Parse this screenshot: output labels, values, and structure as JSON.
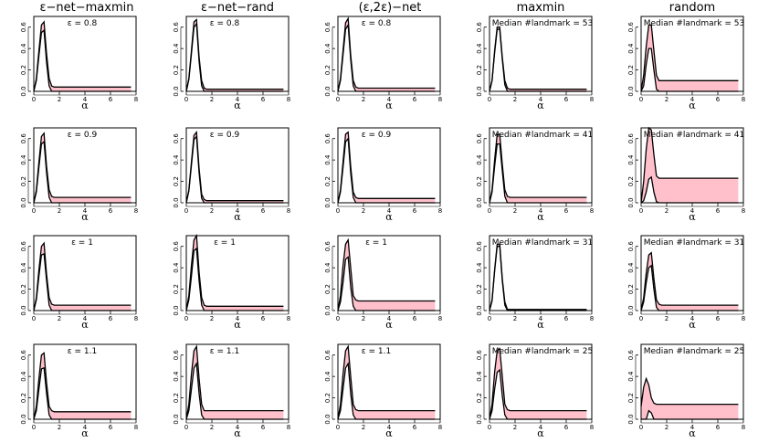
{
  "chart_data": {
    "type": "area",
    "columns": [
      "ε−net−maxmin",
      "ε−net−rand",
      "(ε,2ε)−net",
      "maxmin",
      "random"
    ],
    "xlabel": "α",
    "xlim": [
      0,
      8
    ],
    "ylim": [
      0,
      0.7
    ],
    "x_ticks": [
      "0",
      "2",
      "4",
      "6",
      "8"
    ],
    "y_ticks": [
      "0.0",
      "0.2",
      "0.4",
      "0.6"
    ],
    "band_fill": "#ffc0cb",
    "line_color": "#000000",
    "x": [
      0,
      0.2,
      0.4,
      0.6,
      0.8,
      1.0,
      1.2,
      1.4,
      1.6,
      7.6
    ],
    "rows": [
      {
        "panels": [
          {
            "label": "ε = 0.8",
            "upper": [
              0,
              0.12,
              0.38,
              0.62,
              0.65,
              0.35,
              0.12,
              0.05,
              0.04,
              0.04
            ],
            "lower": [
              0,
              0.1,
              0.33,
              0.55,
              0.57,
              0.27,
              0.05,
              0,
              0,
              0
            ]
          },
          {
            "label": "ε = 0.8",
            "upper": [
              0,
              0.12,
              0.38,
              0.65,
              0.67,
              0.32,
              0.1,
              0.03,
              0.02,
              0.02
            ],
            "lower": [
              0,
              0.11,
              0.35,
              0.6,
              0.63,
              0.28,
              0.05,
              0,
              0,
              0
            ]
          },
          {
            "label": "ε = 0.8",
            "upper": [
              0,
              0.12,
              0.38,
              0.64,
              0.68,
              0.34,
              0.1,
              0.04,
              0.03,
              0.03
            ],
            "lower": [
              0,
              0.1,
              0.34,
              0.58,
              0.62,
              0.3,
              0.05,
              0,
              0,
              0
            ]
          },
          {
            "label": "Median #landmark = 53",
            "upper": [
              0,
              0.1,
              0.38,
              0.6,
              0.6,
              0.32,
              0.1,
              0.03,
              0.02,
              0.02
            ],
            "lower": [
              0,
              0.1,
              0.36,
              0.58,
              0.58,
              0.3,
              0.06,
              0,
              0,
              0
            ]
          },
          {
            "label": "Median #landmark = 53",
            "upper": [
              0,
              0.15,
              0.42,
              0.62,
              0.62,
              0.38,
              0.15,
              0.1,
              0.1,
              0.1
            ],
            "lower": [
              0,
              0.05,
              0.25,
              0.4,
              0.4,
              0.2,
              0.02,
              0,
              0,
              0
            ]
          }
        ]
      },
      {
        "panels": [
          {
            "label": "ε = 0.9",
            "upper": [
              0,
              0.12,
              0.38,
              0.62,
              0.65,
              0.34,
              0.12,
              0.06,
              0.05,
              0.05
            ],
            "lower": [
              0,
              0.1,
              0.33,
              0.55,
              0.57,
              0.28,
              0.05,
              0,
              0,
              0
            ]
          },
          {
            "label": "ε = 0.9",
            "upper": [
              0,
              0.12,
              0.38,
              0.63,
              0.66,
              0.32,
              0.08,
              0.03,
              0.02,
              0.02
            ],
            "lower": [
              0,
              0.11,
              0.35,
              0.59,
              0.62,
              0.28,
              0.04,
              0,
              0,
              0
            ]
          },
          {
            "label": "ε = 0.9",
            "upper": [
              0,
              0.12,
              0.38,
              0.64,
              0.66,
              0.34,
              0.1,
              0.05,
              0.04,
              0.04
            ],
            "lower": [
              0,
              0.1,
              0.33,
              0.57,
              0.6,
              0.28,
              0.05,
              0,
              0,
              0
            ]
          },
          {
            "label": "Median #landmark = 41",
            "upper": [
              0,
              0.12,
              0.4,
              0.64,
              0.64,
              0.36,
              0.12,
              0.06,
              0.05,
              0.05
            ],
            "lower": [
              0,
              0.1,
              0.34,
              0.55,
              0.55,
              0.3,
              0.06,
              0,
              0,
              0
            ]
          },
          {
            "label": "Median #landmark = 41",
            "upper": [
              0,
              0.2,
              0.5,
              0.7,
              0.68,
              0.45,
              0.25,
              0.23,
              0.23,
              0.23
            ],
            "lower": [
              0,
              0.02,
              0.1,
              0.22,
              0.24,
              0.1,
              0.01,
              0,
              0,
              0
            ]
          }
        ]
      },
      {
        "panels": [
          {
            "label": "ε = 1",
            "upper": [
              0,
              0.12,
              0.38,
              0.6,
              0.63,
              0.34,
              0.12,
              0.06,
              0.05,
              0.05
            ],
            "lower": [
              0,
              0.1,
              0.32,
              0.52,
              0.53,
              0.28,
              0.05,
              0,
              0,
              0
            ]
          },
          {
            "label": "ε = 1",
            "upper": [
              0,
              0.14,
              0.42,
              0.66,
              0.7,
              0.36,
              0.12,
              0.05,
              0.04,
              0.04
            ],
            "lower": [
              0,
              0.1,
              0.32,
              0.56,
              0.58,
              0.28,
              0.05,
              0,
              0,
              0
            ]
          },
          {
            "label": "ε = 1",
            "upper": [
              0,
              0.14,
              0.42,
              0.62,
              0.66,
              0.4,
              0.14,
              0.1,
              0.09,
              0.09
            ],
            "lower": [
              0,
              0.08,
              0.26,
              0.48,
              0.5,
              0.22,
              0.04,
              0,
              0,
              0
            ]
          },
          {
            "label": "Median #landmark = 31",
            "upper": [
              0,
              0.1,
              0.38,
              0.62,
              0.62,
              0.3,
              0.08,
              0.01,
              0.01,
              0.01
            ],
            "lower": [
              0,
              0.09,
              0.37,
              0.6,
              0.6,
              0.28,
              0.05,
              0,
              0,
              0
            ]
          },
          {
            "label": "Median #landmark = 31",
            "upper": [
              0,
              0.12,
              0.35,
              0.52,
              0.54,
              0.3,
              0.1,
              0.06,
              0.05,
              0.05
            ],
            "lower": [
              0,
              0.08,
              0.26,
              0.4,
              0.42,
              0.2,
              0.03,
              0,
              0,
              0
            ]
          }
        ]
      },
      {
        "panels": [
          {
            "label": "ε = 1.1",
            "upper": [
              0,
              0.12,
              0.38,
              0.6,
              0.62,
              0.34,
              0.12,
              0.08,
              0.07,
              0.07
            ],
            "lower": [
              0,
              0.08,
              0.28,
              0.47,
              0.48,
              0.24,
              0.04,
              0,
              0,
              0
            ]
          },
          {
            "label": "ε = 1.1",
            "upper": [
              0,
              0.14,
              0.42,
              0.64,
              0.68,
              0.38,
              0.14,
              0.08,
              0.08,
              0.08
            ],
            "lower": [
              0,
              0.08,
              0.28,
              0.48,
              0.52,
              0.24,
              0.04,
              0,
              0,
              0
            ]
          },
          {
            "label": "ε = 1.1",
            "upper": [
              0,
              0.14,
              0.42,
              0.64,
              0.68,
              0.4,
              0.14,
              0.09,
              0.08,
              0.08
            ],
            "lower": [
              0,
              0.08,
              0.28,
              0.48,
              0.52,
              0.24,
              0.04,
              0,
              0,
              0
            ]
          },
          {
            "label": "Median #landmark = 25",
            "upper": [
              0,
              0.14,
              0.44,
              0.64,
              0.66,
              0.4,
              0.14,
              0.09,
              0.08,
              0.08
            ],
            "lower": [
              0,
              0.08,
              0.28,
              0.44,
              0.46,
              0.22,
              0.04,
              0,
              0,
              0
            ]
          },
          {
            "label": "Median #landmark = 25",
            "upper": [
              0.12,
              0.3,
              0.38,
              0.32,
              0.2,
              0.15,
              0.14,
              0.14,
              0.14,
              0.14
            ],
            "lower": [
              0,
              0,
              0,
              0.08,
              0.06,
              0,
              0,
              0,
              0,
              0
            ]
          }
        ]
      }
    ]
  }
}
